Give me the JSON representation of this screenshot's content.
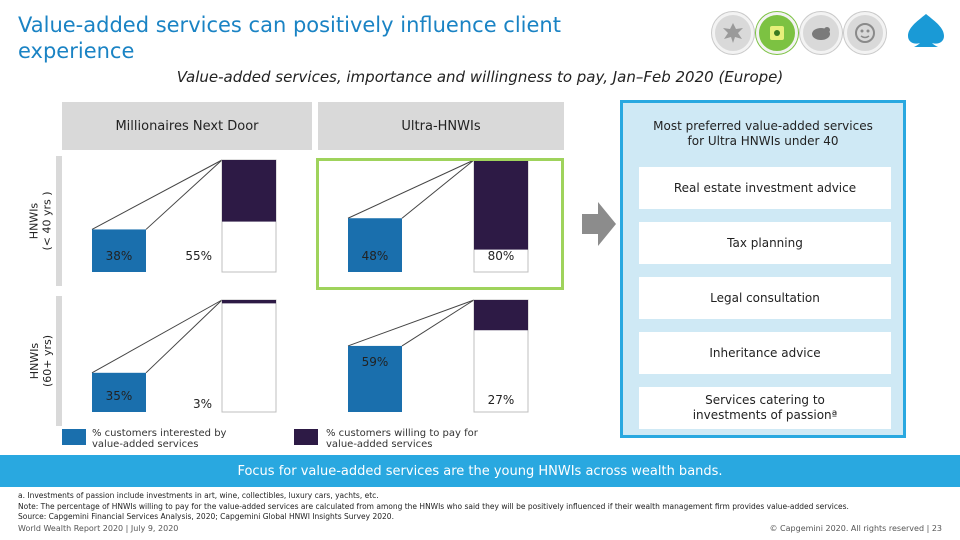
{
  "header": {
    "title": "Value-added services can positively influence client experience",
    "subtitle": "Value-added services, importance and willingness to pay, Jan–Feb 2020 (Europe)"
  },
  "logos": [
    {
      "icon": "bird-emblem-icon"
    },
    {
      "icon": "map-pin-icon"
    },
    {
      "icon": "sheep-icon"
    },
    {
      "icon": "face-icon"
    }
  ],
  "colors": {
    "interested": "#1a6fad",
    "willing": "#2d1a45",
    "accent": "#29a8e0",
    "highlight": "#9fd35c"
  },
  "columns": [
    "Millionaires Next Door",
    "Ultra-HNWIs"
  ],
  "rows": [
    "HNWIs\n(< 40 yrs )",
    "HNWIs\n(60+ yrs)"
  ],
  "chart_data": {
    "type": "bar",
    "series": [
      {
        "name": "% customers interested by value-added services"
      },
      {
        "name": "% customers willing to pay for value-added services"
      }
    ],
    "panels": [
      {
        "row": "HNWIs (< 40 yrs )",
        "column": "Millionaires Next Door",
        "interested": 38,
        "willing": 55,
        "labels": [
          "38%",
          "55%"
        ]
      },
      {
        "row": "HNWIs (< 40 yrs )",
        "column": "Ultra-HNWIs",
        "interested": 48,
        "willing": 80,
        "labels": [
          "48%",
          "80%"
        ]
      },
      {
        "row": "HNWIs (60+ yrs)",
        "column": "Millionaires Next Door",
        "interested": 35,
        "willing": 3,
        "labels": [
          "35%",
          "3%"
        ]
      },
      {
        "row": "HNWIs (60+ yrs)",
        "column": "Ultra-HNWIs",
        "interested": 59,
        "willing": 27,
        "labels": [
          "59%",
          "27%"
        ]
      }
    ],
    "ylim": [
      0,
      100
    ]
  },
  "preferred": {
    "title": "Most preferred value-added services\nfor Ultra HNWIs under 40",
    "items": [
      "Real estate investment advice",
      "Tax planning",
      "Legal consultation",
      "Inheritance advice",
      "Services catering to\ninvestments of passionª"
    ]
  },
  "legend": {
    "interested": "% customers interested by\nvalue-added services",
    "willing": "% customers willing to pay for\nvalue-added services"
  },
  "banner": "Focus for value-added services are the young HNWIs across wealth bands.",
  "notes": {
    "a": "a.      Investments of passion include investments in art, wine, collectibles, luxury cars, yachts, etc.",
    "note": "Note: The percentage of HNWIs willing to pay for the value-added services are calculated from among the HNWIs who said they will be positively influenced if their wealth management firm provides value-added services.",
    "source": "Source:    Capgemini Financial Services Analysis, 2020; Capgemini Global HNWI Insights Survey 2020."
  },
  "footer": {
    "left": "World Wealth Report 2020 | July 9, 2020",
    "right": "© Capgemini 2020. All rights reserved   |   23"
  }
}
